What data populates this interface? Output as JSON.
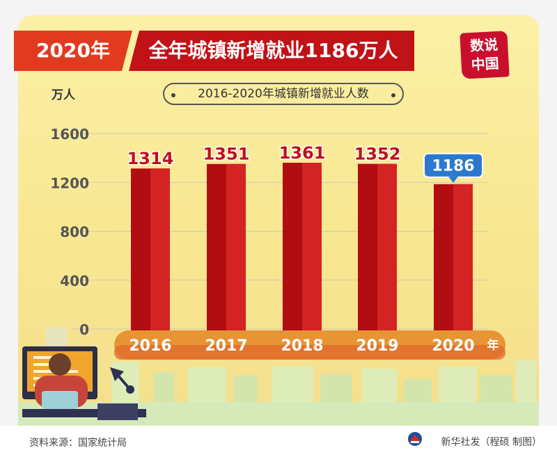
{
  "banner": {
    "year": "2020年",
    "headline": "全年城镇新增就业1186万人"
  },
  "stamp": {
    "line1": "数说",
    "line2": "中国"
  },
  "chart_data": {
    "type": "bar",
    "title": "2016-2020年城镇新增就业人数",
    "ylabel": "万人",
    "xlabel": "年",
    "categories": [
      "2016",
      "2017",
      "2018",
      "2019",
      "2020"
    ],
    "values": [
      1314,
      1351,
      1361,
      1352,
      1186
    ],
    "value_labels": [
      "1314",
      "1351",
      "1361",
      "1352",
      "1186"
    ],
    "highlight_index": 4,
    "ylim": [
      0,
      1600
    ],
    "yticks": [
      0,
      400,
      800,
      1200,
      1600
    ],
    "ytick_labels": [
      "0",
      "400",
      "800",
      "1200",
      "1600"
    ],
    "grid": true,
    "colors": {
      "bar_dark": "#b10d12",
      "bar_light": "#d42323",
      "highlight_label": "#2a79cf",
      "axis_band": "#e79434",
      "label_text": "#c00f1a"
    }
  },
  "footer": {
    "source": "资料来源：国家统计局",
    "credit": "新华社发（程硕 制图）"
  }
}
